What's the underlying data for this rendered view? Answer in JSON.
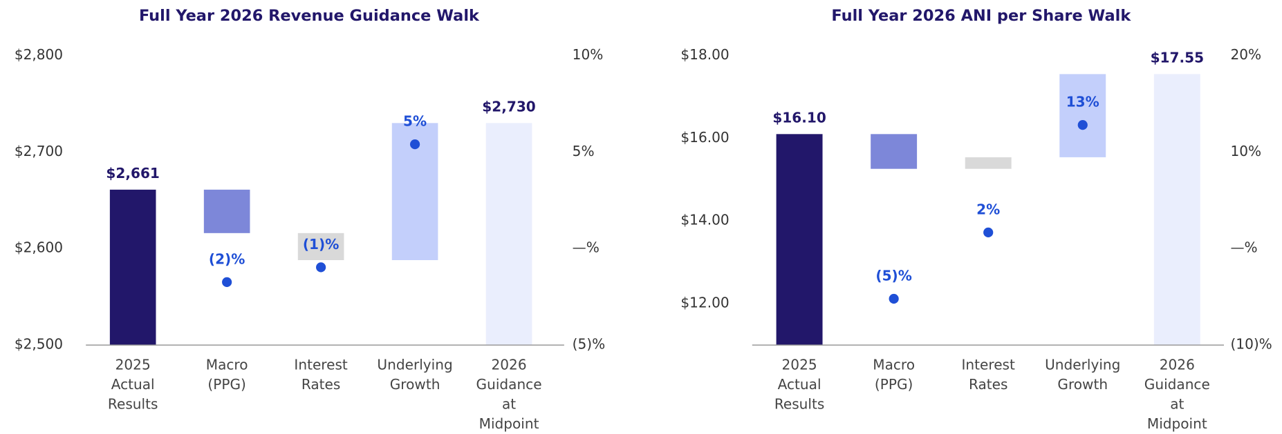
{
  "chart_data": [
    {
      "type": "waterfall",
      "title": "Full Year 2026 Revenue Guidance Walk",
      "categories": [
        "2025\nActual\nResults",
        "Macro\n(PPG)",
        "Interest\nRates",
        "Underlying\nGrowth",
        "2026\nGuidance\nat\nMidpoint"
      ],
      "values": [
        2661,
        -45,
        -28,
        142,
        2730
      ],
      "value_labels": [
        "$2,661",
        null,
        null,
        null,
        "$2,730"
      ],
      "colors": [
        "#22176a",
        "#7d87d9",
        "#d9d9d9",
        "#c3cffb",
        "#eaeefd"
      ],
      "markers": {
        "axis": "y2",
        "color": "#1f4fd6",
        "values": [
          null,
          -1.74,
          -0.97,
          5.4,
          null
        ],
        "value_labels": [
          null,
          "(2)%",
          "(1)%",
          "5%",
          null
        ]
      },
      "ylim": [
        2500,
        2800
      ],
      "yticks": [
        {
          "value": 2500,
          "label": "$2,500"
        },
        {
          "value": 2600,
          "label": "$2,600"
        },
        {
          "value": 2700,
          "label": "$2,700"
        },
        {
          "value": 2800,
          "label": "$2,800"
        }
      ],
      "y2lim": [
        -5,
        10
      ],
      "y2ticks": [
        {
          "value": -5,
          "label": "(5)%"
        },
        {
          "value": 0,
          "label": "—%"
        },
        {
          "value": 5,
          "label": "5%"
        },
        {
          "value": 10,
          "label": "10%"
        }
      ]
    },
    {
      "type": "waterfall",
      "title": "Full Year 2026 ANI per Share Walk",
      "categories": [
        "2025\nActual\nResults",
        "Macro\n(PPG)",
        "Interest\nRates",
        "Underlying\nGrowth",
        "2026\nGuidance\nat\nMidpoint"
      ],
      "values": [
        16.1,
        -0.84,
        0.28,
        2.01,
        17.55
      ],
      "value_labels": [
        "$16.10",
        null,
        null,
        null,
        "$17.55"
      ],
      "colors": [
        "#22176a",
        "#7d87d9",
        "#d9d9d9",
        "#c3cffb",
        "#eaeefd"
      ],
      "markers": {
        "axis": "y2",
        "color": "#1f4fd6",
        "values": [
          null,
          -5.2,
          1.67,
          12.8,
          null
        ],
        "value_labels": [
          null,
          "(5)%",
          "2%",
          "13%",
          null
        ]
      },
      "ylim": [
        11,
        18
      ],
      "yticks": [
        {
          "value": 12,
          "label": "$12.00"
        },
        {
          "value": 14,
          "label": "$14.00"
        },
        {
          "value": 16,
          "label": "$16.00"
        },
        {
          "value": 18,
          "label": "$18.00"
        }
      ],
      "y2lim": [
        -10,
        20
      ],
      "y2ticks": [
        {
          "value": -10,
          "label": "(10)%"
        },
        {
          "value": 0,
          "label": "—%"
        },
        {
          "value": 10,
          "label": "10%"
        },
        {
          "value": 20,
          "label": "20%"
        }
      ]
    }
  ]
}
